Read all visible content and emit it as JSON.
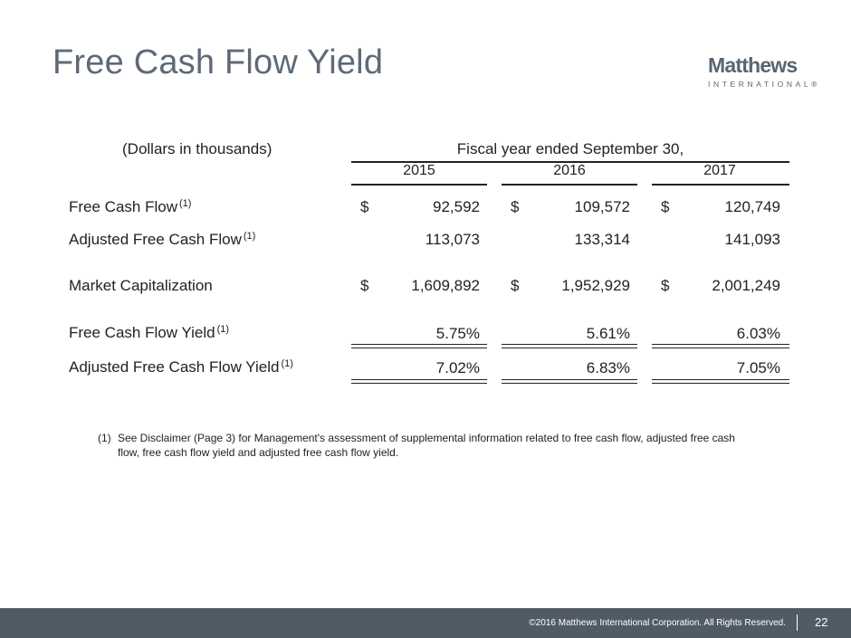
{
  "header": {
    "title": "Free Cash Flow Yield",
    "logo": {
      "main": "Matthews",
      "sub": "INTERNATIONAL®"
    }
  },
  "table": {
    "units_label": "(Dollars in thousands)",
    "period_label": "Fiscal year ended September 30,",
    "years": [
      "2015",
      "2016",
      "2017"
    ],
    "currency_symbol": "$",
    "rows": [
      {
        "label": "Free Cash Flow",
        "note": "(1)",
        "values": [
          "92,592",
          "109,572",
          "120,749"
        ]
      },
      {
        "label": "Adjusted Free Cash Flow",
        "note": "(1)",
        "values": [
          "113,073",
          "133,314",
          "141,093"
        ]
      },
      {
        "label": "Market Capitalization",
        "note": "",
        "values": [
          "1,609,892",
          "1,952,929",
          "2,001,249"
        ]
      },
      {
        "label": "Free Cash Flow Yield",
        "note": "(1)",
        "values": [
          "5.75%",
          "5.61%",
          "6.03%"
        ]
      },
      {
        "label": "Adjusted Free Cash Flow Yield",
        "note": "(1)",
        "values": [
          "7.02%",
          "6.83%",
          "7.05%"
        ]
      }
    ]
  },
  "footnote": {
    "marker": "(1)",
    "text": "See Disclaimer (Page 3) for Management's assessment of supplemental information related to free cash flow, adjusted free cash flow, free cash flow yield and adjusted free cash flow yield."
  },
  "footer": {
    "copyright": "©2016 Matthews International Corporation. All Rights Reserved.",
    "page_number": "22"
  },
  "colors": {
    "title": "#5e6a78",
    "footer_bg": "#515b66",
    "text": "#222222"
  }
}
